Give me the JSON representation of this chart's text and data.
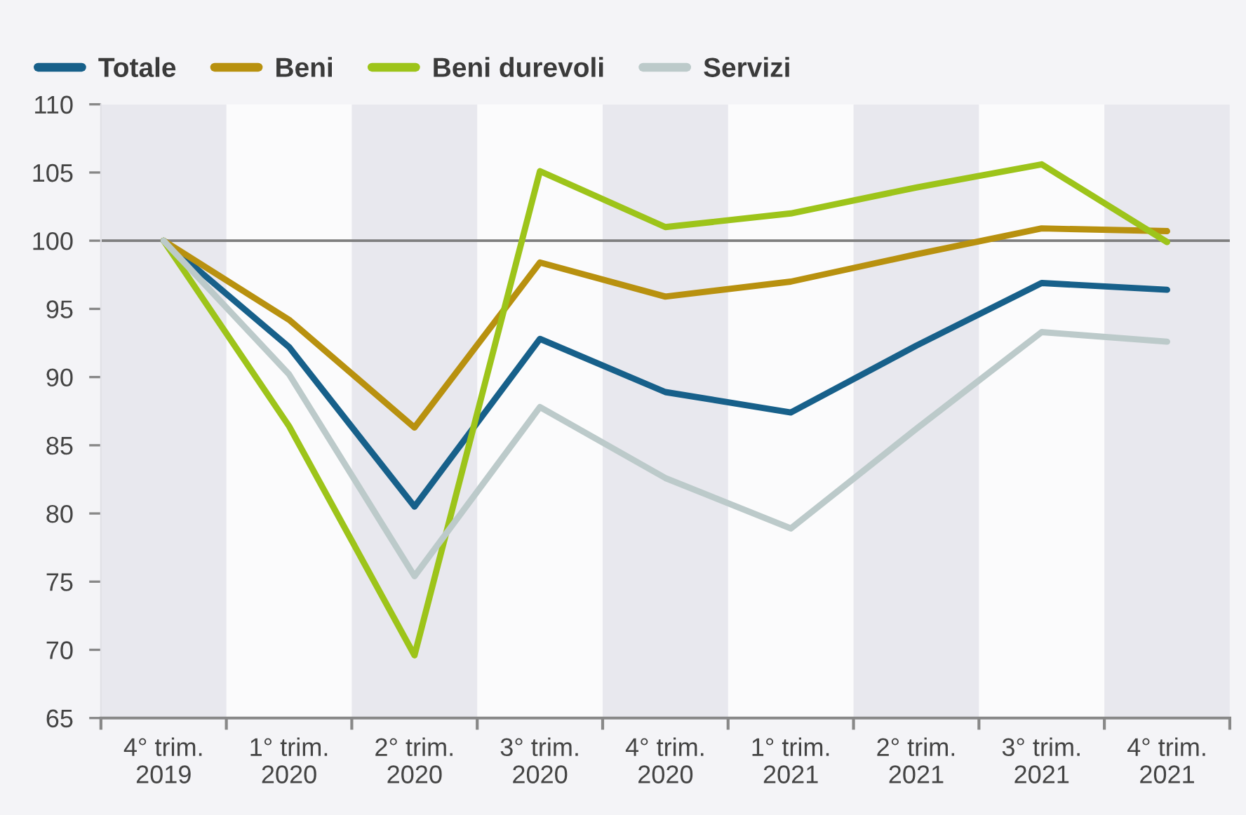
{
  "chart_data": {
    "type": "line",
    "categories": [
      "4° trim.\n2019",
      "1° trim.\n2020",
      "2° trim.\n2020",
      "3° trim.\n2020",
      "4° trim.\n2020",
      "1° trim.\n2021",
      "2° trim.\n2021",
      "3° trim.\n2021",
      "4° trim.\n2021"
    ],
    "series": [
      {
        "name": "Totale",
        "color": "#17608a",
        "values": [
          100,
          92.2,
          80.5,
          92.8,
          88.9,
          87.4,
          92.3,
          96.9,
          96.4
        ]
      },
      {
        "name": "Beni",
        "color": "#b8910f",
        "values": [
          100,
          94.2,
          86.3,
          98.4,
          95.9,
          97.0,
          99.0,
          100.9,
          100.7
        ]
      },
      {
        "name": "Beni durevoli",
        "color": "#9dc41a",
        "values": [
          100,
          86.4,
          69.6,
          105.1,
          101.0,
          102.0,
          103.9,
          105.6,
          99.9
        ]
      },
      {
        "name": "Servizi",
        "color": "#bccaca",
        "values": [
          100,
          90.2,
          75.4,
          87.8,
          82.6,
          78.9,
          86.2,
          93.3,
          92.6
        ]
      }
    ],
    "ylim": [
      65,
      110
    ],
    "yticks": [
      65,
      70,
      75,
      80,
      85,
      90,
      95,
      100,
      105,
      110
    ],
    "ref_lines": [
      {
        "axis": "y",
        "value": 100,
        "color": "#808080"
      }
    ],
    "bands": [
      {
        "axis": "x",
        "from": "4° trim.\n2019",
        "to": "4° trim.\n2019",
        "color": "#e8e8ee"
      },
      {
        "axis": "x",
        "from": "2° trim.\n2020",
        "to": "2° trim.\n2020",
        "color": "#e8e8ee"
      },
      {
        "axis": "x",
        "from": "4° trim.\n2020",
        "to": "4° trim.\n2020",
        "color": "#e8e8ee"
      },
      {
        "axis": "x",
        "from": "2° trim.\n2021",
        "to": "2° trim.\n2021",
        "color": "#e8e8ee"
      },
      {
        "axis": "x",
        "from": "4° trim.\n2021",
        "to": "4° trim.\n2021",
        "color": "#e8e8ee"
      }
    ],
    "legend": "top left",
    "grid": false,
    "marker": "none",
    "line_style": "solid"
  }
}
